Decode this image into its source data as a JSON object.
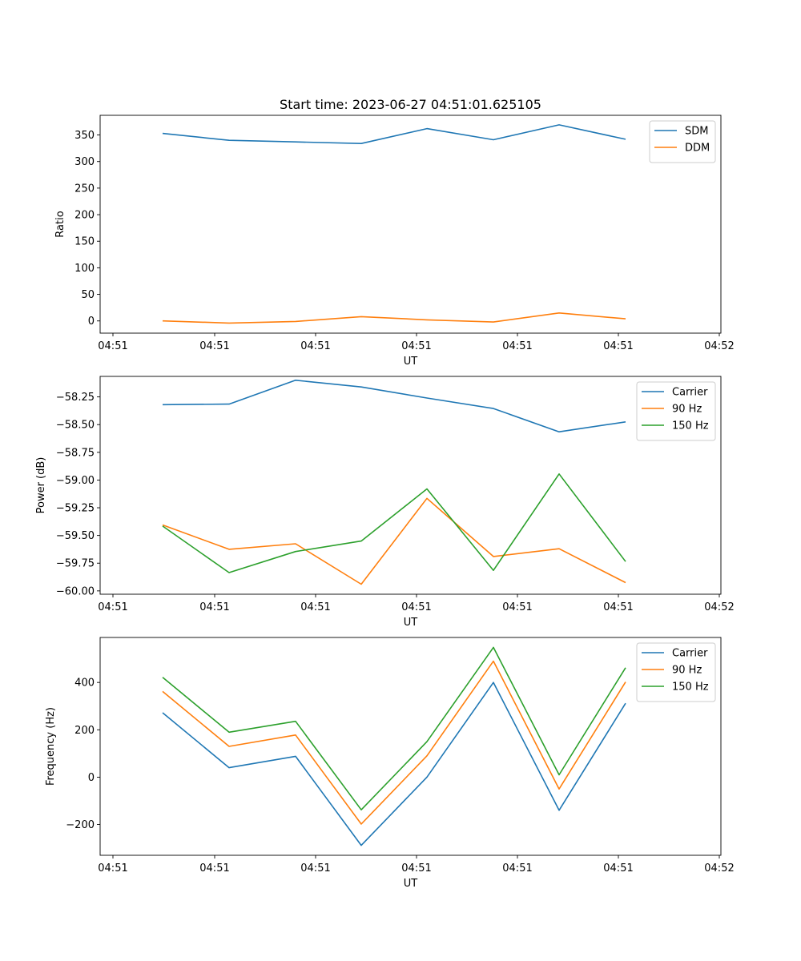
{
  "chart_data": [
    {
      "type": "line",
      "title": "Start time: 2023-06-27 04:51:01.625105",
      "xlabel": "UT",
      "ylabel": "Ratio",
      "x_tick_labels": [
        "04:51",
        "04:51",
        "04:51",
        "04:51",
        "04:51",
        "04:51",
        "04:52"
      ],
      "y_ticks": [
        0,
        50,
        100,
        150,
        200,
        250,
        300,
        350
      ],
      "ylim": [
        -23,
        387
      ],
      "legend_position": "top-right",
      "series": [
        {
          "name": "SDM",
          "color": "#1f77b4",
          "values": [
            353,
            340,
            337,
            334,
            362,
            341,
            369,
            342
          ]
        },
        {
          "name": "DDM",
          "color": "#ff7f0e",
          "values": [
            0,
            -4,
            -1,
            8,
            2,
            -2,
            15,
            4
          ]
        }
      ]
    },
    {
      "type": "line",
      "title": "",
      "xlabel": "UT",
      "ylabel": "Power (dB)",
      "x_tick_labels": [
        "04:51",
        "04:51",
        "04:51",
        "04:51",
        "04:51",
        "04:51",
        "04:52"
      ],
      "y_ticks": [
        -60.0,
        -59.75,
        -59.5,
        -59.25,
        -59.0,
        -58.75,
        -58.5,
        -58.25
      ],
      "y_tick_labels": [
        "−60.00",
        "−59.75",
        "−59.50",
        "−59.25",
        "−59.00",
        "−58.75",
        "−58.50",
        "−58.25"
      ],
      "ylim": [
        -60.03,
        -58.065
      ],
      "legend_position": "top-right",
      "series": [
        {
          "name": "Carrier",
          "color": "#1f77b4",
          "values": [
            -58.32,
            -58.315,
            -58.1,
            -58.16,
            -58.26,
            -58.355,
            -58.565,
            -58.475
          ]
        },
        {
          "name": "90 Hz",
          "color": "#ff7f0e",
          "values": [
            -59.405,
            -59.625,
            -59.575,
            -59.94,
            -59.165,
            -59.69,
            -59.62,
            -59.925
          ]
        },
        {
          "name": "150 Hz",
          "color": "#2ca02c",
          "values": [
            -59.415,
            -59.835,
            -59.645,
            -59.55,
            -59.08,
            -59.815,
            -58.945,
            -59.735
          ]
        }
      ]
    },
    {
      "type": "line",
      "title": "",
      "xlabel": "UT",
      "ylabel": "Frequency (Hz)",
      "x_tick_labels": [
        "04:51",
        "04:51",
        "04:51",
        "04:51",
        "04:51",
        "04:51",
        "04:52"
      ],
      "y_ticks": [
        -200,
        0,
        200,
        400
      ],
      "y_tick_labels": [
        "−200",
        "0",
        "200",
        "400"
      ],
      "ylim": [
        -330,
        590
      ],
      "legend_position": "top-right",
      "series": [
        {
          "name": "Carrier",
          "color": "#1f77b4",
          "values": [
            272,
            40,
            88,
            -288,
            0,
            400,
            -140,
            312
          ]
        },
        {
          "name": "90 Hz",
          "color": "#ff7f0e",
          "values": [
            362,
            130,
            178,
            -198,
            90,
            490,
            -50,
            402
          ]
        },
        {
          "name": "150 Hz",
          "color": "#2ca02c",
          "values": [
            422,
            190,
            236,
            -138,
            150,
            548,
            10,
            462
          ]
        }
      ]
    }
  ]
}
